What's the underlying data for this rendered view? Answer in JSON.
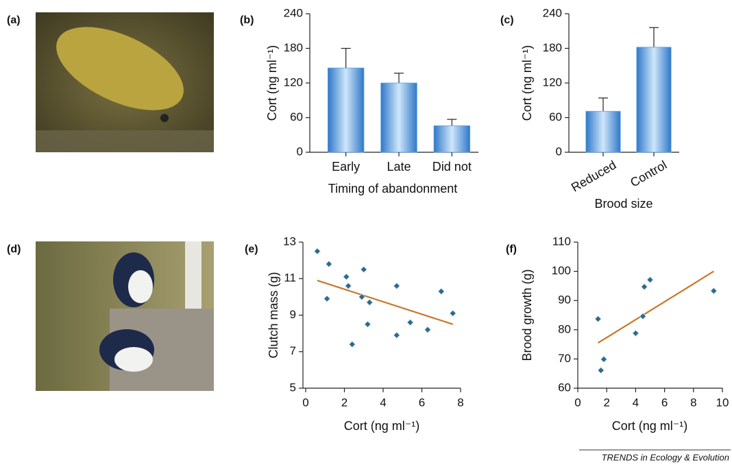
{
  "images": [
    {
      "panel_label": "(a)"
    },
    {
      "panel_label": "(d)"
    }
  ],
  "chart_data": [
    {
      "type": "bar",
      "panel_label": "(b)",
      "y_label": "Cort (ng ml⁻¹)",
      "x_label": "Timing of abandonment",
      "categories": [
        "Early",
        "Late",
        "Did not"
      ],
      "values": [
        146,
        120,
        46
      ],
      "errors": [
        34,
        17,
        11
      ],
      "color": "#5aa0e6",
      "ylim": [
        0,
        240
      ],
      "yticks": [
        0,
        60,
        120,
        180,
        240
      ]
    },
    {
      "type": "bar",
      "panel_label": "(c)",
      "y_label": "Cort (ng ml⁻¹)",
      "x_label": "Brood size",
      "categories": [
        "Reduced",
        "Control"
      ],
      "values": [
        71,
        182
      ],
      "errors": [
        23,
        34
      ],
      "color": "#5aa0e6",
      "ylim": [
        0,
        240
      ],
      "yticks": [
        0,
        60,
        120,
        180,
        240
      ],
      "rotate_labels": true
    },
    {
      "type": "scatter",
      "panel_label": "(e)",
      "y_label": "Clutch mass (g)",
      "x_label": "Cort (ng ml⁻¹)",
      "x": [
        0.6,
        1.2,
        1.1,
        2.1,
        2.2,
        3.0,
        2.9,
        3.3,
        3.2,
        2.4,
        4.7,
        4.7,
        5.4,
        6.3,
        7.0,
        7.6
      ],
      "values": [
        12.5,
        11.8,
        9.9,
        11.1,
        10.6,
        11.5,
        10.0,
        9.7,
        8.5,
        7.4,
        10.6,
        7.9,
        8.6,
        8.2,
        10.3,
        9.1
      ],
      "color": "#2b6a8c",
      "trend": {
        "x": [
          0.6,
          7.6
        ],
        "values": [
          10.9,
          8.5
        ],
        "color": "#c8782a"
      },
      "xlim": [
        0,
        8
      ],
      "xticks": [
        0,
        2,
        4,
        6,
        8
      ],
      "ylim": [
        5,
        13
      ],
      "yticks": [
        5,
        7,
        9,
        11,
        13
      ]
    },
    {
      "type": "scatter",
      "panel_label": "(f)",
      "y_label": "Brood growth (g)",
      "x_label": "Cort (ng ml⁻¹)",
      "x": [
        1.4,
        1.6,
        1.8,
        4.0,
        4.5,
        4.6,
        5.0,
        9.4
      ],
      "values": [
        83.7,
        66.1,
        69.9,
        78.8,
        84.6,
        94.7,
        97.1,
        93.3
      ],
      "color": "#2b6a8c",
      "trend": {
        "x": [
          1.4,
          9.4
        ],
        "values": [
          75.5,
          100
        ],
        "color": "#c8782a"
      },
      "xlim": [
        0,
        10
      ],
      "xticks": [
        0,
        2,
        4,
        6,
        8,
        10
      ],
      "ylim": [
        60,
        110
      ],
      "yticks": [
        60,
        70,
        80,
        90,
        100,
        110
      ]
    }
  ],
  "footer": "TRENDS in Ecology & Evolution"
}
